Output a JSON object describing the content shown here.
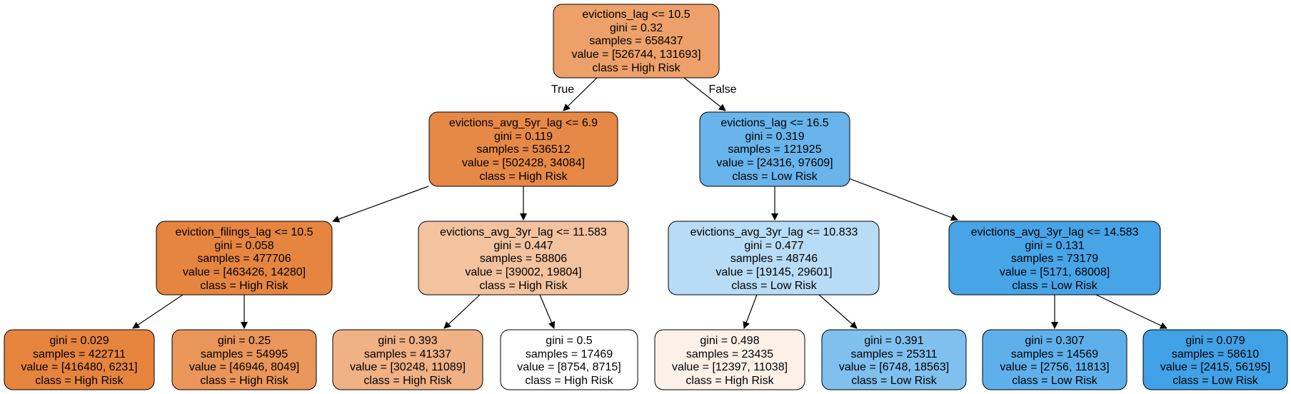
{
  "edge_labels": {
    "true_label": "True",
    "false_label": "False"
  },
  "nodes": [
    {
      "id": "n0",
      "fill": "#eda069",
      "lines": [
        "evictions_lag <= 10.5",
        "gini = 0.32",
        "samples = 658437",
        "value = [526744, 131693]",
        "class = High Risk"
      ]
    },
    {
      "id": "n1",
      "fill": "#e78946",
      "lines": [
        "evictions_avg_5yr_lag <= 6.9",
        "gini = 0.119",
        "samples = 536512",
        "value = [502428, 34084]",
        "class = High Risk"
      ]
    },
    {
      "id": "n2",
      "fill": "#68b4eb",
      "lines": [
        "evictions_lag <= 16.5",
        "gini = 0.319",
        "samples = 121925",
        "value = [24316, 97609]",
        "class = Low Risk"
      ]
    },
    {
      "id": "n3",
      "fill": "#e68540",
      "lines": [
        "eviction_filings_lag <= 10.5",
        "gini = 0.058",
        "samples = 477706",
        "value = [463426, 14280]",
        "class = High Risk"
      ]
    },
    {
      "id": "n4",
      "fill": "#f3c29e",
      "lines": [
        "evictions_avg_3yr_lag <= 11.583",
        "gini = 0.447",
        "samples = 58806",
        "value = [39002, 19804]",
        "class = High Risk"
      ]
    },
    {
      "id": "n5",
      "fill": "#b8dcf6",
      "lines": [
        "evictions_avg_3yr_lag <= 10.833",
        "gini = 0.477",
        "samples = 48746",
        "value = [19145, 29601]",
        "class = Low Risk"
      ]
    },
    {
      "id": "n6",
      "fill": "#47a4e7",
      "lines": [
        "evictions_avg_3yr_lag <= 14.583",
        "gini = 0.131",
        "samples = 73179",
        "value = [5171, 68008]",
        "class = Low Risk"
      ]
    },
    {
      "id": "n7",
      "fill": "#e6843e",
      "lines": [
        "gini = 0.029",
        "samples = 422711",
        "value = [416480, 6231]",
        "class = High Risk"
      ]
    },
    {
      "id": "n8",
      "fill": "#ea955a",
      "lines": [
        "gini = 0.25",
        "samples = 54995",
        "value = [46946, 8049]",
        "class = High Risk"
      ]
    },
    {
      "id": "n9",
      "fill": "#f0b185",
      "lines": [
        "gini = 0.393",
        "samples = 41337",
        "value = [30248, 11089]",
        "class = High Risk"
      ]
    },
    {
      "id": "n10",
      "fill": "#ffffff",
      "lines": [
        "gini = 0.5",
        "samples = 17469",
        "value = [8754, 8715]",
        "class = High Risk"
      ]
    },
    {
      "id": "n11",
      "fill": "#fcf0e7",
      "lines": [
        "gini = 0.498",
        "samples = 23435",
        "value = [12397, 11038]",
        "class = High Risk"
      ]
    },
    {
      "id": "n12",
      "fill": "#80c0ee",
      "lines": [
        "gini = 0.391",
        "samples = 25311",
        "value = [6748, 18563]",
        "class = Low Risk"
      ]
    },
    {
      "id": "n13",
      "fill": "#5fb0ea",
      "lines": [
        "gini = 0.307",
        "samples = 14569",
        "value = [2756, 11813]",
        "class = Low Risk"
      ]
    },
    {
      "id": "n14",
      "fill": "#41a1e6",
      "lines": [
        "gini = 0.079",
        "samples = 58610",
        "value = [2415, 56195]",
        "class = Low Risk"
      ]
    }
  ]
}
